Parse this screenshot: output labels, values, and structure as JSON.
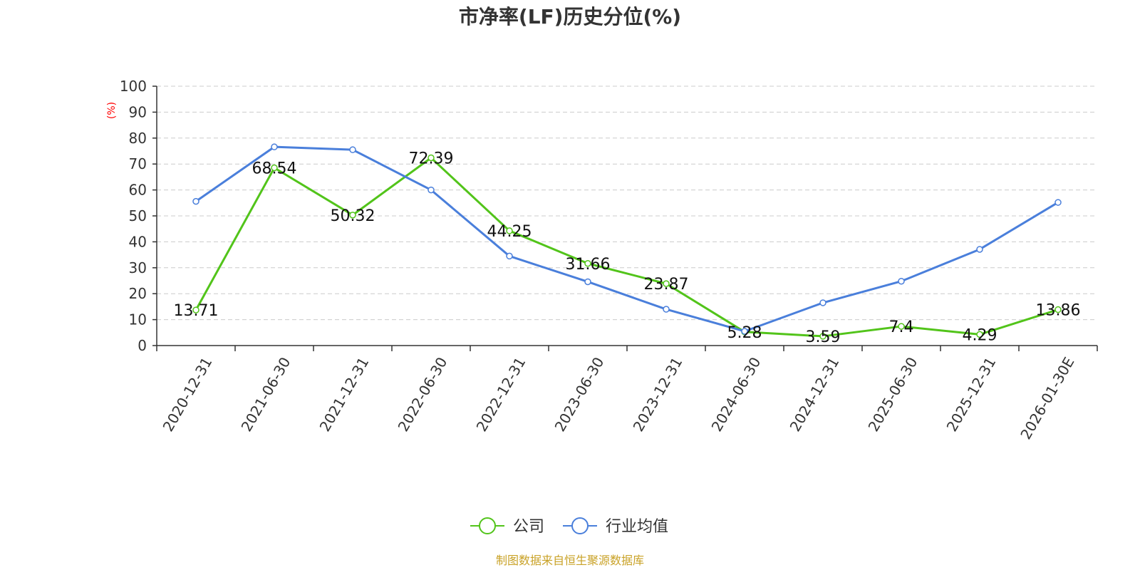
{
  "colors": {
    "company": "#52c41a",
    "industry": "#4a7fdb",
    "axis": "#333333",
    "grid": "#cccccc",
    "unit": "#ff0000",
    "source": "#c9a227"
  },
  "chart_data": {
    "type": "line",
    "title": "市净率(LF)历史分位(%)",
    "ylabel": "(%)",
    "ylim": [
      0,
      100
    ],
    "yticks": [
      "0",
      "10",
      "20",
      "30",
      "40",
      "50",
      "60",
      "70",
      "80",
      "90",
      "100"
    ],
    "grid": true,
    "legend_position": "bottom",
    "categories": [
      "2020-12-31",
      "2021-06-30",
      "2021-12-31",
      "2022-06-30",
      "2022-12-31",
      "2023-06-30",
      "2023-12-31",
      "2024-06-30",
      "2024-12-31",
      "2025-06-30",
      "2025-12-31",
      "2026-01-30E"
    ],
    "series": [
      {
        "name": "公司",
        "values": [
          13.71,
          68.54,
          50.32,
          72.39,
          44.25,
          31.66,
          23.87,
          5.28,
          3.59,
          7.4,
          4.29,
          13.86
        ],
        "labels": [
          "13.71",
          "68.54",
          "50.32",
          "72.39",
          "44.25",
          "31.66",
          "23.87",
          "5.28",
          "3.59",
          "7.4",
          "4.29",
          "13.86"
        ]
      },
      {
        "name": "行业均值",
        "values": [
          55.6,
          76.6,
          75.5,
          60.0,
          34.5,
          24.6,
          14.0,
          5.5,
          16.5,
          24.8,
          37.1,
          55.2
        ]
      }
    ]
  },
  "footer": {
    "source": "制图数据来自恒生聚源数据库"
  }
}
